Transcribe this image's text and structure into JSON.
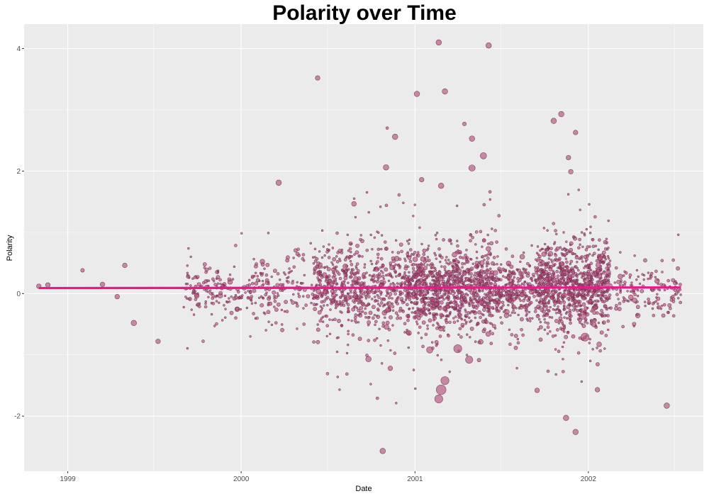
{
  "chart_data": {
    "type": "scatter",
    "title": "Polarity over Time",
    "xlabel": "Date",
    "ylabel": "Polarity",
    "x_ticks": [
      "1999",
      "2000",
      "2001",
      "2002"
    ],
    "y_ticks": [
      -2,
      0,
      2,
      4
    ],
    "xlim": [
      "1998-10-01",
      "2002-08-31"
    ],
    "ylim": [
      -2.9,
      4.4
    ],
    "grid": true,
    "legend": "none",
    "colors": {
      "panel_background": "#EBEBEB",
      "grid_line": "#FFFFFF",
      "point_fill": "#B0527A",
      "point_stroke": "#6E2448",
      "trend_line": "#E8198B"
    },
    "trend_line": {
      "x": [
        "1998-11-01",
        "2002-07-15"
      ],
      "y": [
        0.09,
        0.1
      ]
    },
    "dense_regions": [
      {
        "x_start": "1999-09-01",
        "x_end": "2000-06-01",
        "y_center": 0.05,
        "y_spread": 0.22,
        "count": 300
      },
      {
        "x_start": "2000-06-01",
        "x_end": "2000-12-15",
        "y_center": 0.08,
        "y_spread": 0.35,
        "count": 650
      },
      {
        "x_start": "2000-12-15",
        "x_end": "2001-06-15",
        "y_center": 0.08,
        "y_spread": 0.32,
        "count": 1000
      },
      {
        "x_start": "2001-06-15",
        "x_end": "2001-09-15",
        "y_center": 0.05,
        "y_spread": 0.25,
        "count": 300
      },
      {
        "x_start": "2001-09-15",
        "x_end": "2002-02-15",
        "y_center": 0.12,
        "y_spread": 0.35,
        "count": 900
      },
      {
        "x_start": "2002-02-15",
        "x_end": "2002-07-15",
        "y_center": 0.05,
        "y_spread": 0.2,
        "count": 150
      }
    ],
    "points": [
      {
        "x": "1998-11-01",
        "y": 0.12,
        "size": 0.3
      },
      {
        "x": "1998-11-20",
        "y": 0.14,
        "size": 0.3
      },
      {
        "x": "1999-02-01",
        "y": 0.38,
        "size": 0.2
      },
      {
        "x": "1999-03-15",
        "y": 0.15,
        "size": 0.3
      },
      {
        "x": "1999-04-15",
        "y": -0.05,
        "size": 0.3
      },
      {
        "x": "1999-05-01",
        "y": 0.46,
        "size": 0.3
      },
      {
        "x": "1999-05-20",
        "y": -0.48,
        "size": 0.4
      },
      {
        "x": "1999-07-10",
        "y": -0.78,
        "size": 0.3
      },
      {
        "x": "2000-06-10",
        "y": 3.52,
        "size": 0.3
      },
      {
        "x": "2000-11-20",
        "y": 2.56,
        "size": 0.4
      },
      {
        "x": "2000-11-01",
        "y": 2.06,
        "size": 0.4
      },
      {
        "x": "2001-01-05",
        "y": 3.26,
        "size": 0.4
      },
      {
        "x": "2001-01-15",
        "y": 1.86,
        "size": 0.3
      },
      {
        "x": "2001-02-20",
        "y": 4.1,
        "size": 0.4
      },
      {
        "x": "2001-03-05",
        "y": 3.3,
        "size": 0.4
      },
      {
        "x": "2001-02-25",
        "y": 1.76,
        "size": 0.4
      },
      {
        "x": "2001-04-15",
        "y": 2.77,
        "size": 0.2
      },
      {
        "x": "2001-05-01",
        "y": 2.53,
        "size": 0.4
      },
      {
        "x": "2001-05-25",
        "y": 2.25,
        "size": 0.5
      },
      {
        "x": "2001-06-05",
        "y": 4.05,
        "size": 0.4
      },
      {
        "x": "2001-05-01",
        "y": 2.05,
        "size": 0.5
      },
      {
        "x": "2001-10-20",
        "y": 2.82,
        "size": 0.4
      },
      {
        "x": "2001-11-05",
        "y": 2.93,
        "size": 0.4
      },
      {
        "x": "2001-12-05",
        "y": 2.63,
        "size": 0.3
      },
      {
        "x": "2001-11-20",
        "y": 2.22,
        "size": 0.3
      },
      {
        "x": "2001-11-25",
        "y": 1.99,
        "size": 0.3
      },
      {
        "x": "2000-03-20",
        "y": 1.81,
        "size": 0.4
      },
      {
        "x": "2001-02-01",
        "y": -0.92,
        "size": 0.5
      },
      {
        "x": "2001-04-01",
        "y": -0.9,
        "size": 0.7
      },
      {
        "x": "2001-04-25",
        "y": -1.08,
        "size": 0.6
      },
      {
        "x": "2001-03-05",
        "y": -1.42,
        "size": 0.7
      },
      {
        "x": "2001-02-25",
        "y": -1.57,
        "size": 0.9
      },
      {
        "x": "2001-02-20",
        "y": -1.72,
        "size": 0.7
      },
      {
        "x": "2000-10-25",
        "y": -2.57,
        "size": 0.4
      },
      {
        "x": "2001-11-15",
        "y": -2.03,
        "size": 0.4
      },
      {
        "x": "2001-12-05",
        "y": -2.26,
        "size": 0.4
      },
      {
        "x": "2002-01-20",
        "y": -1.57,
        "size": 0.3
      },
      {
        "x": "2002-06-15",
        "y": -1.83,
        "size": 0.4
      },
      {
        "x": "2001-12-25",
        "y": -0.71,
        "size": 0.7
      },
      {
        "x": "2001-09-15",
        "y": -1.58,
        "size": 0.3
      },
      {
        "x": "2000-09-25",
        "y": -1.07,
        "size": 0.4
      },
      {
        "x": "2000-11-10",
        "y": -1.22,
        "size": 0.3
      },
      {
        "x": "2001-12-20",
        "y": -0.36,
        "size": 0.6
      }
    ]
  }
}
